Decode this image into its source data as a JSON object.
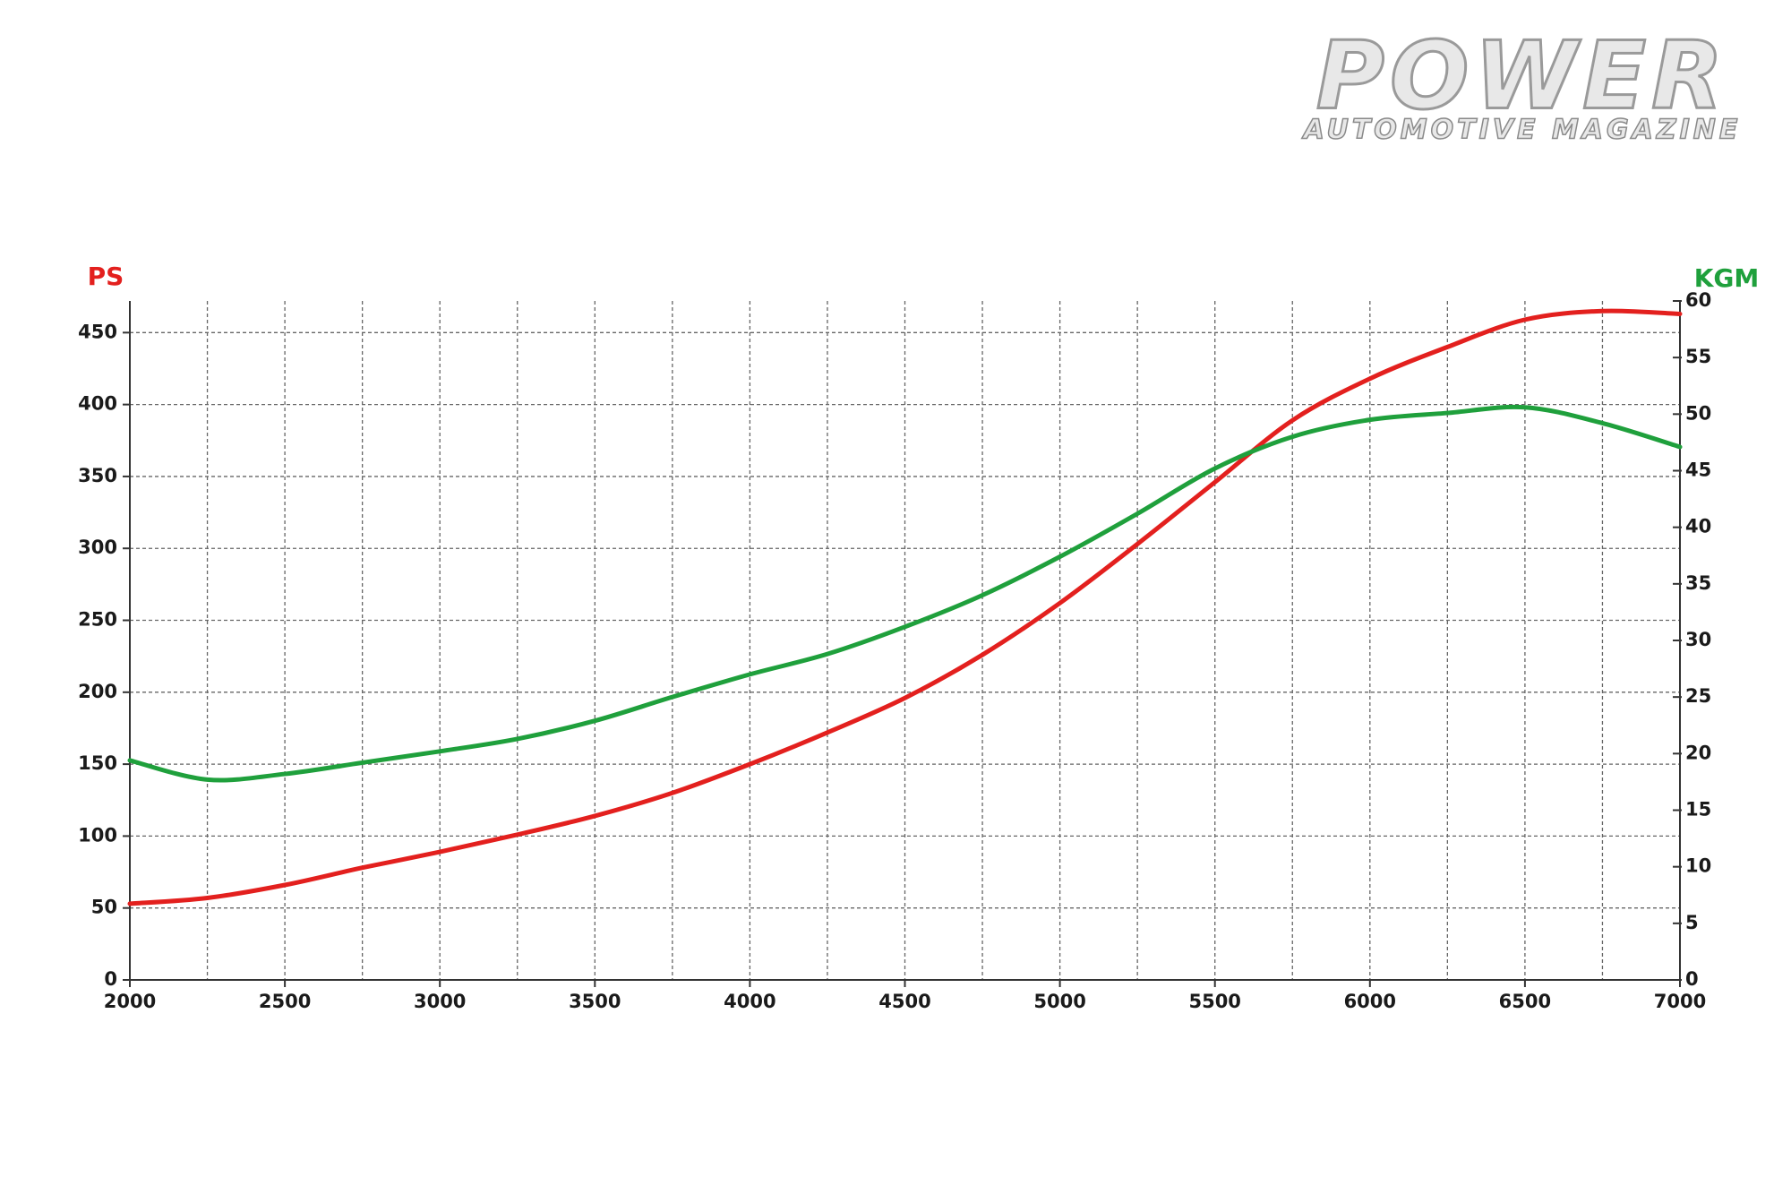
{
  "brand": {
    "name": "POWER",
    "tagline": "AUTOMOTIVE MAGAZINE"
  },
  "chart_data": {
    "type": "line",
    "ylabel": "PS",
    "y2label": "KGM",
    "x": [
      2000,
      2250,
      2500,
      2750,
      3000,
      3250,
      3500,
      3750,
      4000,
      4250,
      4500,
      4750,
      5000,
      5250,
      5500,
      5750,
      6000,
      6250,
      6500,
      6750,
      7000
    ],
    "series": [
      {
        "name": "PS",
        "color": "#e3201e",
        "axis": "y",
        "values": [
          53,
          57,
          66,
          78,
          89,
          101,
          114,
          130,
          150,
          172,
          196,
          226,
          262,
          303,
          346,
          389,
          418,
          440,
          459,
          465,
          463
        ]
      },
      {
        "name": "KGM",
        "color": "#1fa03c",
        "axis": "y2",
        "values": [
          19.4,
          17.7,
          18.2,
          19.2,
          20.2,
          21.3,
          22.9,
          25.0,
          27.0,
          28.8,
          31.2,
          34.0,
          37.4,
          41.2,
          45.2,
          48.0,
          49.5,
          50.1,
          50.6,
          49.2,
          47.1
        ]
      }
    ],
    "xlim": [
      2000,
      7000
    ],
    "xticks": [
      2000,
      2500,
      3000,
      3500,
      4000,
      4500,
      5000,
      5500,
      6000,
      6500,
      7000
    ],
    "ylim": [
      0,
      472
    ],
    "yticks": [
      0,
      50,
      100,
      150,
      200,
      250,
      300,
      350,
      400,
      450
    ],
    "y2lim": [
      0,
      60
    ],
    "y2ticks": [
      0,
      5,
      10,
      15,
      20,
      25,
      30,
      35,
      40,
      45,
      50,
      55,
      60
    ],
    "grid": true,
    "minor_x_grid": true
  }
}
